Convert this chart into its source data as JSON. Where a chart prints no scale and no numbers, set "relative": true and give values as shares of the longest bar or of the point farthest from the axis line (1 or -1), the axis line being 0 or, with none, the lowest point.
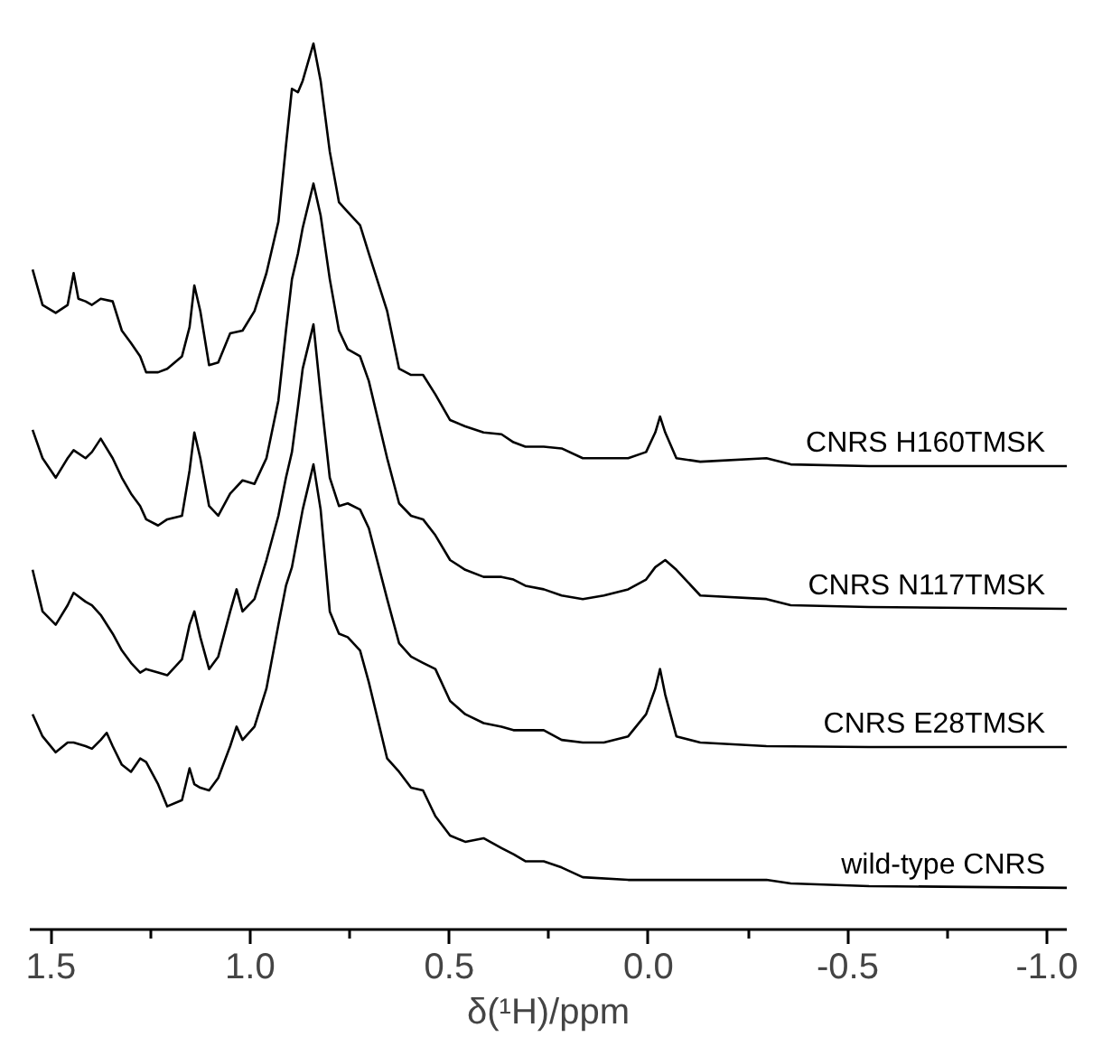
{
  "chart_data": {
    "type": "line",
    "relative": true,
    "xlabel": "δ(¹H)/ppm",
    "xlim": [
      1.553,
      -1.05
    ],
    "xticks": [
      {
        "value": 1.5,
        "label": "1.5"
      },
      {
        "value": 1.25,
        "label": null
      },
      {
        "value": 1.0,
        "label": "1.0"
      },
      {
        "value": 0.75,
        "label": null
      },
      {
        "value": 0.5,
        "label": "0.5"
      },
      {
        "value": 0.25,
        "label": null
      },
      {
        "value": 0.0,
        "label": "0.0"
      },
      {
        "value": -0.25,
        "label": null
      },
      {
        "value": -0.5,
        "label": "-0.5"
      },
      {
        "value": -0.75,
        "label": null
      },
      {
        "value": -1.0,
        "label": "-1.0"
      }
    ],
    "grid": false,
    "legend": false,
    "tick_labels": "x",
    "line_style": "solid",
    "marker": "none",
    "series": [
      {
        "name": "CNRS H160TMSK",
        "color": "#000000",
        "x": [
          1.546,
          1.521,
          1.488,
          1.458,
          1.443,
          1.431,
          1.413,
          1.397,
          1.375,
          1.345,
          1.322,
          1.299,
          1.276,
          1.261,
          1.231,
          1.208,
          1.171,
          1.152,
          1.14,
          1.125,
          1.103,
          1.08,
          1.05,
          1.019,
          0.989,
          0.959,
          0.929,
          0.91,
          0.895,
          0.88,
          0.868,
          0.841,
          0.823,
          0.8,
          0.777,
          0.755,
          0.724,
          0.702,
          0.656,
          0.626,
          0.596,
          0.566,
          0.535,
          0.498,
          0.46,
          0.414,
          0.369,
          0.339,
          0.309,
          0.263,
          0.218,
          0.165,
          0.112,
          0.051,
          0.006,
          -0.017,
          -0.029,
          -0.042,
          -0.07,
          -0.13,
          -0.296,
          -0.357,
          -0.554,
          -1.05
        ],
        "values": [
          0.745,
          0.705,
          0.696,
          0.705,
          0.741,
          0.712,
          0.709,
          0.705,
          0.712,
          0.709,
          0.676,
          0.662,
          0.647,
          0.629,
          0.629,
          0.633,
          0.647,
          0.68,
          0.727,
          0.698,
          0.637,
          0.64,
          0.673,
          0.676,
          0.698,
          0.741,
          0.799,
          0.885,
          0.949,
          0.945,
          0.958,
          1.0,
          0.958,
          0.878,
          0.821,
          0.81,
          0.795,
          0.763,
          0.698,
          0.633,
          0.626,
          0.626,
          0.604,
          0.575,
          0.568,
          0.561,
          0.559,
          0.55,
          0.545,
          0.545,
          0.543,
          0.532,
          0.532,
          0.532,
          0.539,
          0.561,
          0.579,
          0.561,
          0.532,
          0.528,
          0.532,
          0.525,
          0.523,
          0.523
        ]
      },
      {
        "name": "CNRS N117TMSK",
        "color": "#000000",
        "x": [
          1.546,
          1.521,
          1.488,
          1.458,
          1.443,
          1.413,
          1.397,
          1.375,
          1.345,
          1.322,
          1.299,
          1.276,
          1.261,
          1.231,
          1.208,
          1.171,
          1.152,
          1.14,
          1.125,
          1.103,
          1.08,
          1.05,
          1.019,
          0.989,
          0.959,
          0.929,
          0.91,
          0.895,
          0.88,
          0.868,
          0.841,
          0.823,
          0.8,
          0.777,
          0.755,
          0.724,
          0.702,
          0.656,
          0.626,
          0.596,
          0.566,
          0.535,
          0.498,
          0.46,
          0.414,
          0.369,
          0.339,
          0.309,
          0.263,
          0.218,
          0.165,
          0.112,
          0.051,
          0.006,
          -0.017,
          -0.042,
          -0.07,
          -0.13,
          -0.296,
          -0.357,
          -0.554,
          -1.05
        ],
        "values": [
          0.564,
          0.532,
          0.51,
          0.532,
          0.541,
          0.532,
          0.539,
          0.554,
          0.532,
          0.51,
          0.492,
          0.478,
          0.463,
          0.456,
          0.463,
          0.467,
          0.518,
          0.561,
          0.532,
          0.478,
          0.467,
          0.492,
          0.507,
          0.503,
          0.532,
          0.597,
          0.676,
          0.734,
          0.763,
          0.792,
          0.842,
          0.806,
          0.734,
          0.676,
          0.655,
          0.647,
          0.619,
          0.532,
          0.481,
          0.467,
          0.463,
          0.445,
          0.417,
          0.406,
          0.398,
          0.398,
          0.395,
          0.388,
          0.384,
          0.377,
          0.373,
          0.377,
          0.384,
          0.395,
          0.409,
          0.417,
          0.406,
          0.377,
          0.373,
          0.366,
          0.364,
          0.362
        ]
      },
      {
        "name": "CNRS E28TMSK",
        "color": "#000000",
        "x": [
          1.546,
          1.521,
          1.488,
          1.458,
          1.443,
          1.413,
          1.397,
          1.375,
          1.345,
          1.322,
          1.299,
          1.276,
          1.261,
          1.231,
          1.208,
          1.171,
          1.152,
          1.14,
          1.125,
          1.103,
          1.08,
          1.05,
          1.034,
          1.019,
          0.989,
          0.959,
          0.929,
          0.91,
          0.895,
          0.88,
          0.868,
          0.841,
          0.823,
          0.8,
          0.777,
          0.755,
          0.724,
          0.702,
          0.656,
          0.626,
          0.596,
          0.566,
          0.535,
          0.498,
          0.46,
          0.414,
          0.369,
          0.339,
          0.309,
          0.263,
          0.218,
          0.165,
          0.112,
          0.051,
          0.006,
          -0.017,
          -0.029,
          -0.042,
          -0.07,
          -0.13,
          -0.296,
          -0.554,
          -1.05
        ],
        "values": [
          0.406,
          0.359,
          0.344,
          0.366,
          0.38,
          0.37,
          0.366,
          0.355,
          0.334,
          0.315,
          0.301,
          0.29,
          0.294,
          0.29,
          0.287,
          0.305,
          0.344,
          0.359,
          0.33,
          0.294,
          0.308,
          0.359,
          0.384,
          0.359,
          0.373,
          0.417,
          0.467,
          0.51,
          0.539,
          0.59,
          0.633,
          0.683,
          0.604,
          0.51,
          0.478,
          0.481,
          0.474,
          0.453,
          0.373,
          0.323,
          0.308,
          0.301,
          0.294,
          0.258,
          0.243,
          0.233,
          0.229,
          0.225,
          0.225,
          0.225,
          0.214,
          0.211,
          0.211,
          0.218,
          0.243,
          0.272,
          0.294,
          0.265,
          0.218,
          0.211,
          0.207,
          0.206,
          0.206
        ]
      },
      {
        "name": "wild-type CNRS",
        "color": "#000000",
        "x": [
          1.546,
          1.521,
          1.488,
          1.458,
          1.443,
          1.413,
          1.397,
          1.375,
          1.36,
          1.345,
          1.322,
          1.299,
          1.276,
          1.261,
          1.231,
          1.208,
          1.171,
          1.152,
          1.14,
          1.125,
          1.103,
          1.08,
          1.05,
          1.034,
          1.019,
          0.989,
          0.959,
          0.929,
          0.91,
          0.895,
          0.88,
          0.868,
          0.841,
          0.823,
          0.8,
          0.777,
          0.755,
          0.724,
          0.702,
          0.656,
          0.626,
          0.596,
          0.566,
          0.535,
          0.498,
          0.46,
          0.414,
          0.369,
          0.339,
          0.309,
          0.263,
          0.218,
          0.165,
          0.051,
          -0.1,
          -0.296,
          -0.357,
          -0.554,
          -1.05
        ],
        "values": [
          0.243,
          0.218,
          0.2,
          0.211,
          0.211,
          0.207,
          0.204,
          0.214,
          0.222,
          0.207,
          0.186,
          0.178,
          0.193,
          0.189,
          0.164,
          0.139,
          0.146,
          0.182,
          0.164,
          0.16,
          0.157,
          0.171,
          0.207,
          0.229,
          0.214,
          0.229,
          0.272,
          0.344,
          0.388,
          0.409,
          0.445,
          0.474,
          0.525,
          0.474,
          0.359,
          0.334,
          0.33,
          0.315,
          0.279,
          0.193,
          0.178,
          0.16,
          0.157,
          0.128,
          0.106,
          0.099,
          0.103,
          0.092,
          0.085,
          0.077,
          0.077,
          0.07,
          0.059,
          0.056,
          0.056,
          0.056,
          0.052,
          0.049,
          0.047
        ]
      }
    ]
  }
}
